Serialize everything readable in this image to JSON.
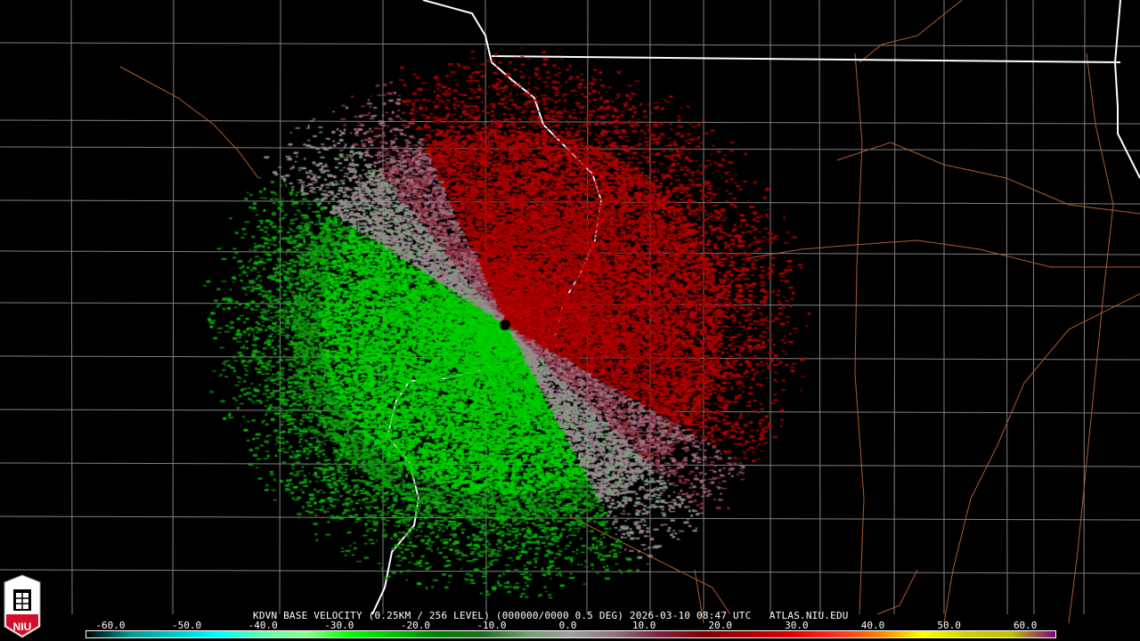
{
  "product_title": "KDVN BASE VELOCITY (0.25KM / 256 LEVEL) (000000/0000 0.5 DEG) 2026-03-10 08:47 UTC   ATLAS.NIU.EDU",
  "logo": {
    "text": "NIU",
    "colors": {
      "shield": "#ffffff",
      "base": "#d0102a"
    }
  },
  "legend": {
    "ticks": [
      "-60.0",
      "-50.0",
      "-40.0",
      "-30.0",
      "-20.0",
      "-10.0",
      "0.0",
      "10.0",
      "20.0",
      "30.0",
      "40.0",
      "50.0",
      "60.0"
    ],
    "colors": [
      "#000000",
      "#009a9a",
      "#00c8c8",
      "#00ffff",
      "#60ffb0",
      "#90ff90",
      "#00ff00",
      "#00c000",
      "#008000",
      "#207020",
      "#70a070",
      "#a0a0a0",
      "#907080",
      "#802040",
      "#800000",
      "#b00000",
      "#e00000",
      "#ff3020",
      "#ff8000",
      "#ffff00",
      "#d0d000",
      "#c0c000",
      "#800080"
    ]
  },
  "map_colors": {
    "county": "#808080",
    "state": "#ffffff",
    "road": "#b05a30"
  },
  "radar_site": "KDVN"
}
